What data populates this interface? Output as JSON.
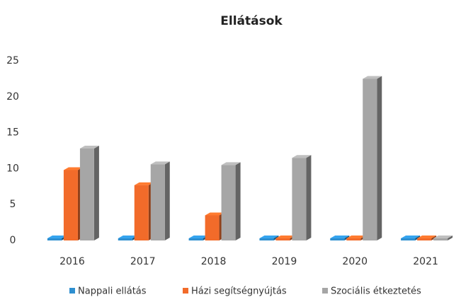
{
  "chart_data": {
    "type": "bar3d",
    "title": "Ellátások",
    "categories": [
      "2016",
      "2017",
      "2018",
      "2019",
      "2020",
      "2021"
    ],
    "series": [
      {
        "name": "Nappali ellátás",
        "color": "#2e8fd0",
        "values": [
          0,
          0,
          0,
          0,
          0,
          0
        ]
      },
      {
        "name": "Házi segítségnyújtás",
        "color": "#f26b2a",
        "values": [
          9.5,
          7.4,
          3.2,
          0,
          0,
          0
        ]
      },
      {
        "name": "Szociális étkeztetés",
        "color": "#a6a6a6",
        "values": [
          12.5,
          10.3,
          10.2,
          11.2,
          22.2,
          0
        ]
      }
    ],
    "ylim": [
      0,
      25
    ],
    "yticks": [
      0,
      5,
      10,
      15,
      20,
      25
    ],
    "grid": false,
    "legend": "bottom"
  }
}
